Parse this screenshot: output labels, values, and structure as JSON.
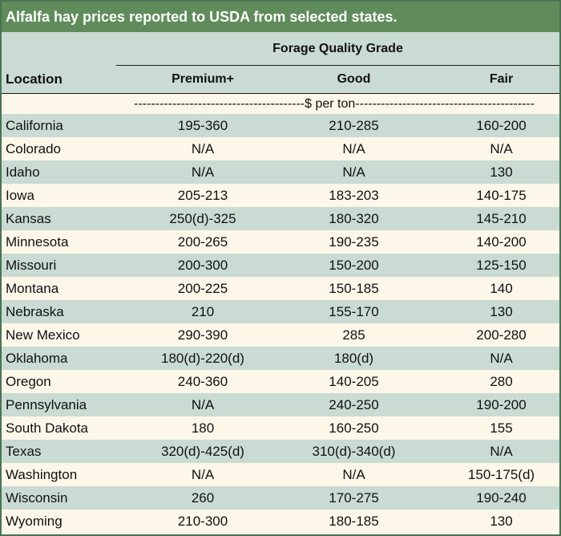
{
  "title": "Alfalfa hay prices reported to USDA from selected states.",
  "header": {
    "group": "Forage Quality Grade",
    "location": "Location",
    "columns": [
      "Premium+",
      "Good",
      "Fair"
    ]
  },
  "units": "----------------------------------------$ per ton------------------------------------------",
  "rows": [
    {
      "location": "California",
      "premium": "195-360",
      "good": "210-285",
      "fair": "160-200"
    },
    {
      "location": "Colorado",
      "premium": "N/A",
      "good": "N/A",
      "fair": "N/A"
    },
    {
      "location": "Idaho",
      "premium": "N/A",
      "good": "N/A",
      "fair": "130"
    },
    {
      "location": "Iowa",
      "premium": "205-213",
      "good": "183-203",
      "fair": "140-175"
    },
    {
      "location": "Kansas",
      "premium": "250(d)-325",
      "good": "180-320",
      "fair": "145-210"
    },
    {
      "location": "Minnesota",
      "premium": "200-265",
      "good": "190-235",
      "fair": "140-200"
    },
    {
      "location": "Missouri",
      "premium": "200-300",
      "good": "150-200",
      "fair": "125-150"
    },
    {
      "location": "Montana",
      "premium": "200-225",
      "good": "150-185",
      "fair": "140"
    },
    {
      "location": "Nebraska",
      "premium": "210",
      "good": "155-170",
      "fair": "130"
    },
    {
      "location": "New Mexico",
      "premium": "290-390",
      "good": "285",
      "fair": "200-280"
    },
    {
      "location": "Oklahoma",
      "premium": "180(d)-220(d)",
      "good": "180(d)",
      "fair": "N/A"
    },
    {
      "location": "Oregon",
      "premium": "240-360",
      "good": "140-205",
      "fair": "280"
    },
    {
      "location": "Pennsylvania",
      "premium": "N/A",
      "good": "240-250",
      "fair": "190-200"
    },
    {
      "location": "South Dakota",
      "premium": "180",
      "good": "160-250",
      "fair": "155"
    },
    {
      "location": "Texas",
      "premium": "320(d)-425(d)",
      "good": "310(d)-340(d)",
      "fair": "N/A"
    },
    {
      "location": "Washington",
      "premium": "N/A",
      "good": "N/A",
      "fair": "150-175(d)"
    },
    {
      "location": "Wisconsin",
      "premium": "260",
      "good": "170-275",
      "fair": "190-240"
    },
    {
      "location": "Wyoming",
      "premium": "210-300",
      "good": "180-185",
      "fair": "130"
    }
  ]
}
